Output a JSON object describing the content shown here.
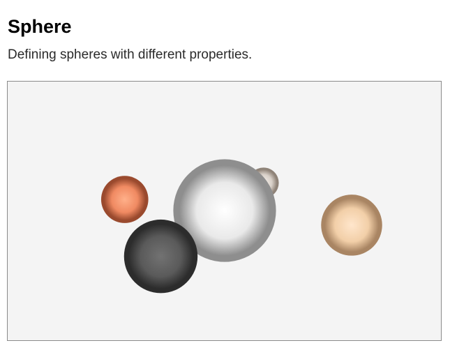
{
  "header": {
    "title": "Sphere",
    "subtitle": "Defining spheres with different properties."
  },
  "scene": {
    "background": "#f4f4f4",
    "spheres": [
      {
        "name": "sphere-beige-back",
        "base": "#d8d0c8",
        "light": "#f6f1ec",
        "dark": "#8f8378"
      },
      {
        "name": "sphere-orange",
        "base": "#f08a62",
        "light": "#ffb08a",
        "dark": "#9a4a2e"
      },
      {
        "name": "sphere-peach",
        "base": "#f2cfa8",
        "light": "#ffe6cc",
        "dark": "#a98563"
      },
      {
        "name": "sphere-white-large",
        "base": "#e9e9e9",
        "light": "#ffffff",
        "dark": "#8e8e8e"
      },
      {
        "name": "sphere-dark-gray",
        "base": "#5a5a5a",
        "light": "#727272",
        "dark": "#2c2c2c"
      }
    ]
  }
}
